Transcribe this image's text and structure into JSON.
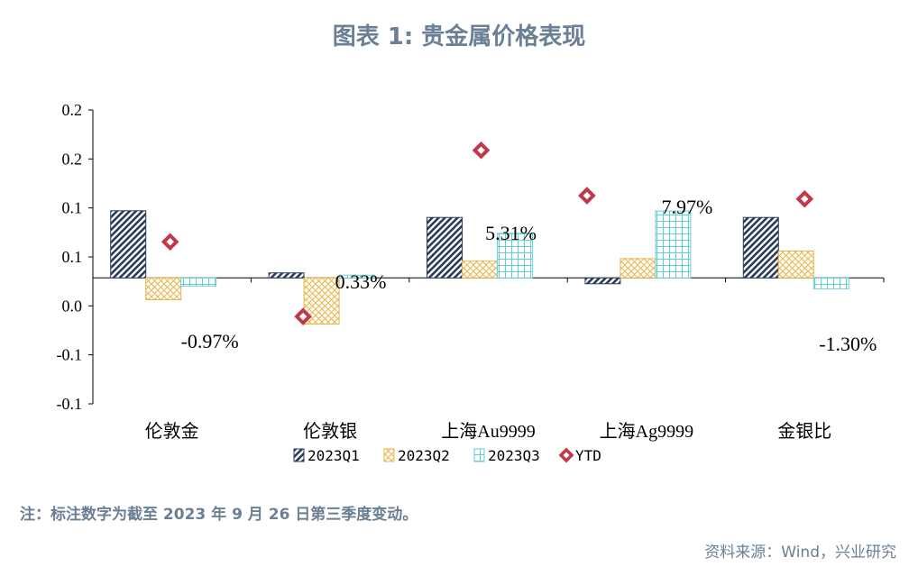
{
  "title": "图表 1:  贵金属价格表现",
  "note": "注：标注数字为截至 2023 年 9 月 26 日第三季度变动。",
  "source": "资料来源：Wind，兴业研究",
  "chart_data": {
    "type": "bar",
    "categories": [
      "伦敦金",
      "伦敦银",
      "上海Au9999",
      "上海Ag9999",
      "金银比"
    ],
    "y_ticks": [
      "0.2",
      "0.2",
      "0.1",
      "0.1",
      "0.0",
      "-0.1",
      "-0.1"
    ],
    "ylim": [
      -0.15,
      0.2
    ],
    "grid": false,
    "legend_position": "bottom",
    "series": [
      {
        "name": "2023Q1",
        "type": "bar",
        "values": [
          0.08,
          0.006,
          0.072,
          -0.007,
          0.072
        ],
        "color": "#2c3e5a"
      },
      {
        "name": "2023Q2",
        "type": "bar",
        "values": [
          -0.026,
          -0.055,
          0.02,
          0.023,
          0.032
        ],
        "color": "#e8b54a"
      },
      {
        "name": "2023Q3",
        "type": "bar",
        "values": [
          -0.0097,
          0.0033,
          0.0531,
          0.0797,
          -0.013
        ],
        "color": "#6fd1d4"
      },
      {
        "name": "YTD",
        "type": "scatter",
        "values": [
          0.043,
          -0.046,
          0.152,
          0.098,
          0.094
        ],
        "color": "#c0394a"
      }
    ],
    "annotations": [
      "-0.97%",
      "0.33%",
      "5.31%",
      "7.97%",
      "-1.30%"
    ]
  }
}
